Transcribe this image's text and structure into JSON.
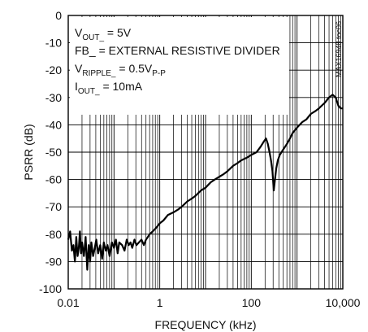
{
  "chart_data": {
    "type": "line",
    "title": "",
    "xlabel": "FREQUENCY (kHz)",
    "ylabel": "PSRR (dB)",
    "x_scale": "log",
    "xlim": [
      0.01,
      10000
    ],
    "ylim": [
      -100,
      0
    ],
    "grid": true,
    "x_ticks": [
      0.01,
      0.1,
      1,
      10,
      100,
      1000,
      10000
    ],
    "x_tick_labels": [
      "0.01",
      "",
      "1",
      "",
      "100",
      "",
      "10,000"
    ],
    "y_ticks": [
      0,
      -10,
      -20,
      -30,
      -40,
      -50,
      -60,
      -70,
      -80,
      -90,
      -100
    ],
    "y_tick_labels": [
      "0",
      "-10",
      "-20",
      "-30",
      "-40",
      "-50",
      "-60",
      "-70",
      "-80",
      "-90",
      "-100"
    ],
    "annotations": [
      {
        "id": "vout",
        "main": "V",
        "sub": "OUT_",
        "rest": " = 5V"
      },
      {
        "id": "fb",
        "main": "FB_ = EXTERNAL RESISTIVE DIVIDER",
        "sub": "",
        "rest": ""
      },
      {
        "id": "vripple",
        "main": "V",
        "sub": "RIPPLE_",
        "rest": " = 0.5V",
        "sub2": "P-P"
      },
      {
        "id": "iout",
        "main": "I",
        "sub": "OUT_",
        "rest": " = 10mA"
      }
    ],
    "watermark": "MAX16948 toc06",
    "series": [
      {
        "name": "",
        "color": "#000000",
        "x": [
          0.01,
          0.011,
          0.012,
          0.013,
          0.014,
          0.015,
          0.016,
          0.017,
          0.018,
          0.019,
          0.02,
          0.022,
          0.024,
          0.026,
          0.028,
          0.03,
          0.032,
          0.035,
          0.038,
          0.041,
          0.045,
          0.05,
          0.055,
          0.06,
          0.066,
          0.072,
          0.08,
          0.09,
          0.1,
          0.11,
          0.12,
          0.13,
          0.15,
          0.17,
          0.19,
          0.21,
          0.23,
          0.25,
          0.28,
          0.31,
          0.35,
          0.4,
          0.45,
          0.5,
          0.55,
          0.6,
          0.7,
          0.8,
          0.9,
          1.0,
          1.2,
          1.5,
          2,
          2.5,
          3,
          4,
          5,
          6,
          8,
          10,
          13,
          16,
          20,
          25,
          30,
          40,
          50,
          60,
          80,
          100,
          130,
          160,
          190,
          210,
          230,
          250,
          270,
          290,
          310,
          330,
          350,
          380,
          420,
          500,
          600,
          700,
          800,
          1000,
          1300,
          1600,
          2000,
          2500,
          3000,
          4000,
          5000,
          6000,
          7000,
          8000,
          9000,
          10000
        ],
        "y": [
          -82,
          -79,
          -86,
          -84,
          -90,
          -81,
          -88,
          -85,
          -79,
          -87,
          -83,
          -88,
          -81,
          -93,
          -84,
          -90,
          -83,
          -88,
          -85,
          -82,
          -87,
          -84,
          -89,
          -83,
          -86,
          -84,
          -88,
          -83,
          -85,
          -82,
          -87,
          -83,
          -84,
          -86,
          -82,
          -84,
          -83,
          -85,
          -82,
          -84,
          -83,
          -82,
          -84,
          -82,
          -81,
          -80,
          -79,
          -78,
          -77,
          -76,
          -75,
          -73,
          -72,
          -71,
          -70,
          -68,
          -67,
          -66,
          -64,
          -63,
          -61,
          -60,
          -59,
          -58,
          -57,
          -55,
          -54,
          -53,
          -52,
          -51,
          -50,
          -48,
          -46,
          -45,
          -47,
          -50,
          -53,
          -57,
          -64,
          -60,
          -56,
          -53,
          -51,
          -49,
          -47,
          -45,
          -43,
          -41,
          -39,
          -38,
          -36,
          -35,
          -34,
          -32,
          -30,
          -29,
          -30,
          -33,
          -34,
          -34
        ]
      }
    ]
  }
}
